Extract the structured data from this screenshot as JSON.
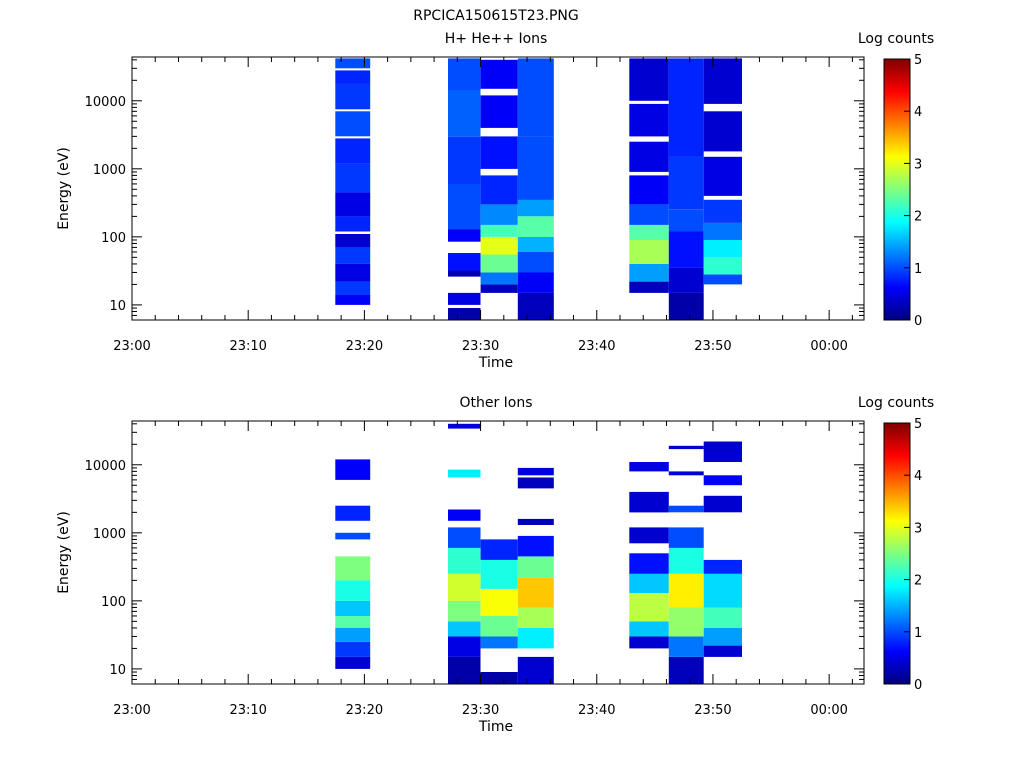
{
  "figure": {
    "title": "RPCICA150615T23.PNG"
  },
  "colorscale": [
    "#00007f",
    "#0000ff",
    "#007fff",
    "#00ffff",
    "#7fff7f",
    "#ffff00",
    "#ff7f00",
    "#ff0000",
    "#7f0000"
  ],
  "chart_data": [
    {
      "type": "heatmap",
      "title": "H+ He++ Ions",
      "xlabel": "Time",
      "ylabel": "Energy (eV)",
      "yscale": "log",
      "ylim": [
        6,
        44000
      ],
      "xlim": [
        "23:00",
        "00:03"
      ],
      "x_ticks": [
        "23:00",
        "23:10",
        "23:20",
        "23:30",
        "23:40",
        "23:50",
        "00:00"
      ],
      "y_ticks": [
        "10",
        "100",
        "1000",
        "10000"
      ],
      "colorbar": {
        "label": "Log counts",
        "range": [
          0,
          5
        ],
        "ticks": [
          "0",
          "1",
          "2",
          "3",
          "4",
          "5"
        ]
      },
      "columns": [
        {
          "start": "23:17.5",
          "end": "23:20.5",
          "bands": [
            {
              "emin": 10,
              "emax": 14,
              "value": 0.6
            },
            {
              "emin": 14,
              "emax": 22,
              "value": 0.9
            },
            {
              "emin": 22,
              "emax": 40,
              "value": 0.5
            },
            {
              "emin": 40,
              "emax": 70,
              "value": 0.9
            },
            {
              "emin": 70,
              "emax": 110,
              "value": 0.4
            },
            {
              "emin": 120,
              "emax": 200,
              "value": 0.8
            },
            {
              "emin": 200,
              "emax": 450,
              "value": 0.5
            },
            {
              "emin": 450,
              "emax": 1200,
              "value": 0.9
            },
            {
              "emin": 1200,
              "emax": 2800,
              "value": 0.8
            },
            {
              "emin": 3000,
              "emax": 7000,
              "value": 1.0
            },
            {
              "emin": 7500,
              "emax": 18000,
              "value": 0.9
            },
            {
              "emin": 18000,
              "emax": 28000,
              "value": 0.8
            },
            {
              "emin": 30000,
              "emax": 42000,
              "value": 1.0
            }
          ]
        },
        {
          "start": "23:27.2",
          "end": "23:30.0",
          "bands": [
            {
              "emin": 6,
              "emax": 9,
              "value": 0.2
            },
            {
              "emin": 10,
              "emax": 15,
              "value": 0.5
            },
            {
              "emin": 26,
              "emax": 32,
              "value": 0.3
            },
            {
              "emin": 32,
              "emax": 58,
              "value": 0.7
            },
            {
              "emin": 85,
              "emax": 130,
              "value": 0.6
            },
            {
              "emin": 130,
              "emax": 600,
              "value": 1.0
            },
            {
              "emin": 600,
              "emax": 3000,
              "value": 0.9
            },
            {
              "emin": 3000,
              "emax": 14000,
              "value": 1.1
            },
            {
              "emin": 14000,
              "emax": 42000,
              "value": 1.0
            }
          ]
        },
        {
          "start": "23:30.0",
          "end": "23:33.2",
          "bands": [
            {
              "emin": 15,
              "emax": 20,
              "value": 0.3
            },
            {
              "emin": 20,
              "emax": 30,
              "value": 1.2
            },
            {
              "emin": 30,
              "emax": 55,
              "value": 2.4
            },
            {
              "emin": 55,
              "emax": 100,
              "value": 3.0
            },
            {
              "emin": 100,
              "emax": 150,
              "value": 2.2
            },
            {
              "emin": 150,
              "emax": 300,
              "value": 1.3
            },
            {
              "emin": 300,
              "emax": 800,
              "value": 0.8
            },
            {
              "emin": 1000,
              "emax": 3000,
              "value": 0.7
            },
            {
              "emin": 4000,
              "emax": 12000,
              "value": 0.6
            },
            {
              "emin": 15000,
              "emax": 40000,
              "value": 0.6
            }
          ]
        },
        {
          "start": "23:33.2",
          "end": "23:36.3",
          "bands": [
            {
              "emin": 6,
              "emax": 15,
              "value": 0.3
            },
            {
              "emin": 15,
              "emax": 30,
              "value": 0.6
            },
            {
              "emin": 30,
              "emax": 60,
              "value": 1.0
            },
            {
              "emin": 60,
              "emax": 100,
              "value": 1.5
            },
            {
              "emin": 100,
              "emax": 200,
              "value": 2.3
            },
            {
              "emin": 200,
              "emax": 350,
              "value": 1.4
            },
            {
              "emin": 350,
              "emax": 3000,
              "value": 1.0
            },
            {
              "emin": 3000,
              "emax": 42000,
              "value": 1.0
            }
          ]
        },
        {
          "start": "23:42.8",
          "end": "23:46.2",
          "bands": [
            {
              "emin": 15,
              "emax": 22,
              "value": 0.3
            },
            {
              "emin": 22,
              "emax": 40,
              "value": 1.4
            },
            {
              "emin": 40,
              "emax": 90,
              "value": 2.7
            },
            {
              "emin": 90,
              "emax": 150,
              "value": 2.3
            },
            {
              "emin": 150,
              "emax": 300,
              "value": 1.0
            },
            {
              "emin": 300,
              "emax": 800,
              "value": 0.6
            },
            {
              "emin": 900,
              "emax": 2500,
              "value": 0.5
            },
            {
              "emin": 3000,
              "emax": 9000,
              "value": 0.5
            },
            {
              "emin": 10000,
              "emax": 42000,
              "value": 0.4
            }
          ]
        },
        {
          "start": "23:46.2",
          "end": "23:49.2",
          "bands": [
            {
              "emin": 6,
              "emax": 15,
              "value": 0.2
            },
            {
              "emin": 15,
              "emax": 35,
              "value": 0.4
            },
            {
              "emin": 35,
              "emax": 120,
              "value": 0.7
            },
            {
              "emin": 120,
              "emax": 250,
              "value": 1.0
            },
            {
              "emin": 250,
              "emax": 1500,
              "value": 0.9
            },
            {
              "emin": 1500,
              "emax": 42000,
              "value": 0.8
            }
          ]
        },
        {
          "start": "23:49.2",
          "end": "23:52.5",
          "bands": [
            {
              "emin": 20,
              "emax": 28,
              "value": 1.0
            },
            {
              "emin": 28,
              "emax": 50,
              "value": 2.1
            },
            {
              "emin": 50,
              "emax": 90,
              "value": 1.8
            },
            {
              "emin": 90,
              "emax": 160,
              "value": 1.2
            },
            {
              "emin": 160,
              "emax": 350,
              "value": 0.9
            },
            {
              "emin": 400,
              "emax": 1500,
              "value": 0.5
            },
            {
              "emin": 1800,
              "emax": 7000,
              "value": 0.4
            },
            {
              "emin": 9000,
              "emax": 42000,
              "value": 0.4
            }
          ]
        }
      ]
    },
    {
      "type": "heatmap",
      "title": "Other Ions",
      "xlabel": "Time",
      "ylabel": "Energy (eV)",
      "yscale": "log",
      "ylim": [
        6,
        44000
      ],
      "xlim": [
        "23:00",
        "00:03"
      ],
      "x_ticks": [
        "23:00",
        "23:10",
        "23:20",
        "23:30",
        "23:40",
        "23:50",
        "00:00"
      ],
      "y_ticks": [
        "10",
        "100",
        "1000",
        "10000"
      ],
      "colorbar": {
        "label": "Log counts",
        "range": [
          0,
          5
        ],
        "ticks": [
          "0",
          "1",
          "2",
          "3",
          "4",
          "5"
        ]
      },
      "columns": [
        {
          "start": "23:17.5",
          "end": "23:20.5",
          "bands": [
            {
              "emin": 10,
              "emax": 15,
              "value": 0.4
            },
            {
              "emin": 15,
              "emax": 25,
              "value": 0.9
            },
            {
              "emin": 25,
              "emax": 40,
              "value": 1.4
            },
            {
              "emin": 40,
              "emax": 60,
              "value": 2.3
            },
            {
              "emin": 60,
              "emax": 100,
              "value": 1.6
            },
            {
              "emin": 100,
              "emax": 200,
              "value": 2.0
            },
            {
              "emin": 200,
              "emax": 450,
              "value": 2.5
            },
            {
              "emin": 800,
              "emax": 1000,
              "value": 1.0
            },
            {
              "emin": 1500,
              "emax": 2500,
              "value": 0.8
            },
            {
              "emin": 6000,
              "emax": 12000,
              "value": 0.6
            }
          ]
        },
        {
          "start": "23:27.2",
          "end": "23:30.0",
          "bands": [
            {
              "emin": 6,
              "emax": 15,
              "value": 0.2
            },
            {
              "emin": 15,
              "emax": 30,
              "value": 0.5
            },
            {
              "emin": 30,
              "emax": 50,
              "value": 1.6
            },
            {
              "emin": 50,
              "emax": 100,
              "value": 2.5
            },
            {
              "emin": 100,
              "emax": 250,
              "value": 2.9
            },
            {
              "emin": 250,
              "emax": 600,
              "value": 2.1
            },
            {
              "emin": 600,
              "emax": 1200,
              "value": 1.0
            },
            {
              "emin": 1500,
              "emax": 2200,
              "value": 0.6
            },
            {
              "emin": 6500,
              "emax": 8500,
              "value": 1.8
            },
            {
              "emin": 34000,
              "emax": 40000,
              "value": 0.5
            }
          ]
        },
        {
          "start": "23:30.0",
          "end": "23:33.2",
          "bands": [
            {
              "emin": 6,
              "emax": 9,
              "value": 0.2
            },
            {
              "emin": 20,
              "emax": 30,
              "value": 1.2
            },
            {
              "emin": 30,
              "emax": 60,
              "value": 2.4
            },
            {
              "emin": 60,
              "emax": 150,
              "value": 3.1
            },
            {
              "emin": 150,
              "emax": 400,
              "value": 2.0
            },
            {
              "emin": 400,
              "emax": 800,
              "value": 0.8
            }
          ]
        },
        {
          "start": "23:33.2",
          "end": "23:36.3",
          "bands": [
            {
              "emin": 6,
              "emax": 15,
              "value": 0.4
            },
            {
              "emin": 20,
              "emax": 40,
              "value": 1.8
            },
            {
              "emin": 40,
              "emax": 80,
              "value": 2.7
            },
            {
              "emin": 80,
              "emax": 220,
              "value": 3.4
            },
            {
              "emin": 220,
              "emax": 450,
              "value": 2.4
            },
            {
              "emin": 450,
              "emax": 900,
              "value": 0.7
            },
            {
              "emin": 1300,
              "emax": 1600,
              "value": 0.3
            },
            {
              "emin": 4500,
              "emax": 6500,
              "value": 0.3
            },
            {
              "emin": 7000,
              "emax": 9000,
              "value": 0.5
            }
          ]
        },
        {
          "start": "23:42.8",
          "end": "23:46.2",
          "bands": [
            {
              "emin": 20,
              "emax": 30,
              "value": 0.4
            },
            {
              "emin": 30,
              "emax": 50,
              "value": 1.6
            },
            {
              "emin": 50,
              "emax": 130,
              "value": 2.8
            },
            {
              "emin": 130,
              "emax": 250,
              "value": 1.6
            },
            {
              "emin": 250,
              "emax": 500,
              "value": 0.7
            },
            {
              "emin": 700,
              "emax": 1200,
              "value": 0.4
            },
            {
              "emin": 2000,
              "emax": 4000,
              "value": 0.4
            },
            {
              "emin": 8000,
              "emax": 11000,
              "value": 0.5
            }
          ]
        },
        {
          "start": "23:46.2",
          "end": "23:49.2",
          "bands": [
            {
              "emin": 6,
              "emax": 15,
              "value": 0.3
            },
            {
              "emin": 15,
              "emax": 30,
              "value": 1.2
            },
            {
              "emin": 30,
              "emax": 80,
              "value": 2.6
            },
            {
              "emin": 80,
              "emax": 250,
              "value": 3.2
            },
            {
              "emin": 250,
              "emax": 600,
              "value": 2.0
            },
            {
              "emin": 600,
              "emax": 1200,
              "value": 1.0
            },
            {
              "emin": 2000,
              "emax": 2500,
              "value": 1.0
            },
            {
              "emin": 7000,
              "emax": 8000,
              "value": 0.4
            },
            {
              "emin": 17000,
              "emax": 19000,
              "value": 0.4
            }
          ]
        },
        {
          "start": "23:49.2",
          "end": "23:52.5",
          "bands": [
            {
              "emin": 15,
              "emax": 22,
              "value": 0.4
            },
            {
              "emin": 22,
              "emax": 40,
              "value": 1.4
            },
            {
              "emin": 40,
              "emax": 80,
              "value": 2.2
            },
            {
              "emin": 80,
              "emax": 250,
              "value": 1.7
            },
            {
              "emin": 250,
              "emax": 400,
              "value": 0.8
            },
            {
              "emin": 2000,
              "emax": 3500,
              "value": 0.4
            },
            {
              "emin": 5000,
              "emax": 7000,
              "value": 0.6
            },
            {
              "emin": 11000,
              "emax": 22000,
              "value": 0.4
            }
          ]
        }
      ]
    }
  ]
}
